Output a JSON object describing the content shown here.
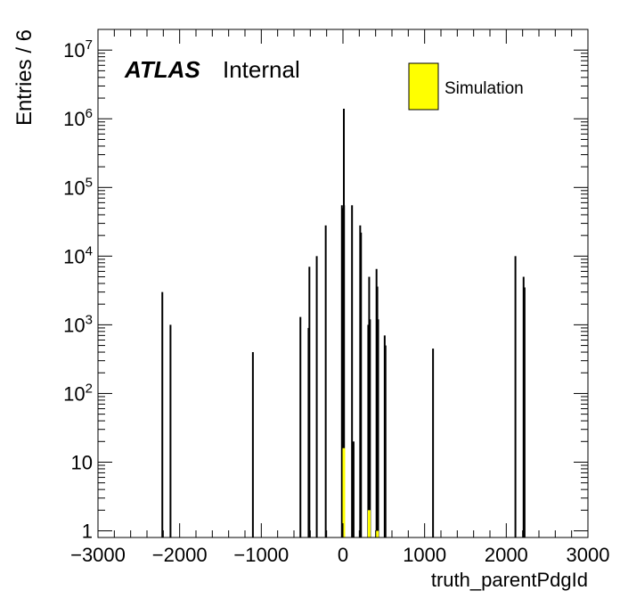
{
  "chart_data": {
    "type": "histogram",
    "title": "",
    "xlabel": "truth_parentPdgId",
    "ylabel": "Entries / 6",
    "xlim": [
      -3000,
      3000
    ],
    "ylim": [
      0.8,
      20000000
    ],
    "yscale": "log",
    "x_ticks": [
      "−3000",
      "−2000",
      "−1000",
      "0",
      "1000",
      "2000",
      "3000"
    ],
    "y_ticks": [
      {
        "base": "1",
        "exp": ""
      },
      {
        "base": "10",
        "exp": ""
      },
      {
        "base": "10",
        "exp": "2"
      },
      {
        "base": "10",
        "exp": "3"
      },
      {
        "base": "10",
        "exp": "4"
      },
      {
        "base": "10",
        "exp": "5"
      },
      {
        "base": "10",
        "exp": "6"
      },
      {
        "base": "10",
        "exp": "7"
      }
    ],
    "atlas_label": "ATLAS",
    "status_label": "Internal",
    "legend": [
      {
        "name": "Simulation",
        "color": "#ffff00"
      }
    ],
    "series": [
      {
        "name": "Simulation",
        "color": "#ffff00",
        "x": [
          -2212,
          -2112,
          -1103,
          -521,
          -421,
          -411,
          -321,
          -211,
          -13,
          -11,
          11,
          13,
          111,
          130,
          211,
          221,
          310,
          321,
          331,
          411,
          421,
          431,
          511,
          521,
          1103,
          2112,
          2212,
          2224
        ],
        "values": [
          3000,
          1000,
          400,
          1300,
          900,
          7000,
          10000,
          28000,
          55000,
          50000,
          1400000,
          55000,
          55000,
          20,
          28000,
          22000,
          1000,
          5000,
          1200,
          6500,
          3600,
          1200,
          700,
          500,
          450,
          10000,
          5000,
          3500
        ],
        "inner_values": [
          0,
          0,
          0,
          0,
          0,
          0,
          0,
          0,
          0,
          0,
          16,
          0,
          0,
          0,
          0,
          0,
          0,
          2,
          0,
          0,
          1,
          0,
          0,
          0,
          0,
          0,
          0,
          0
        ]
      }
    ]
  }
}
